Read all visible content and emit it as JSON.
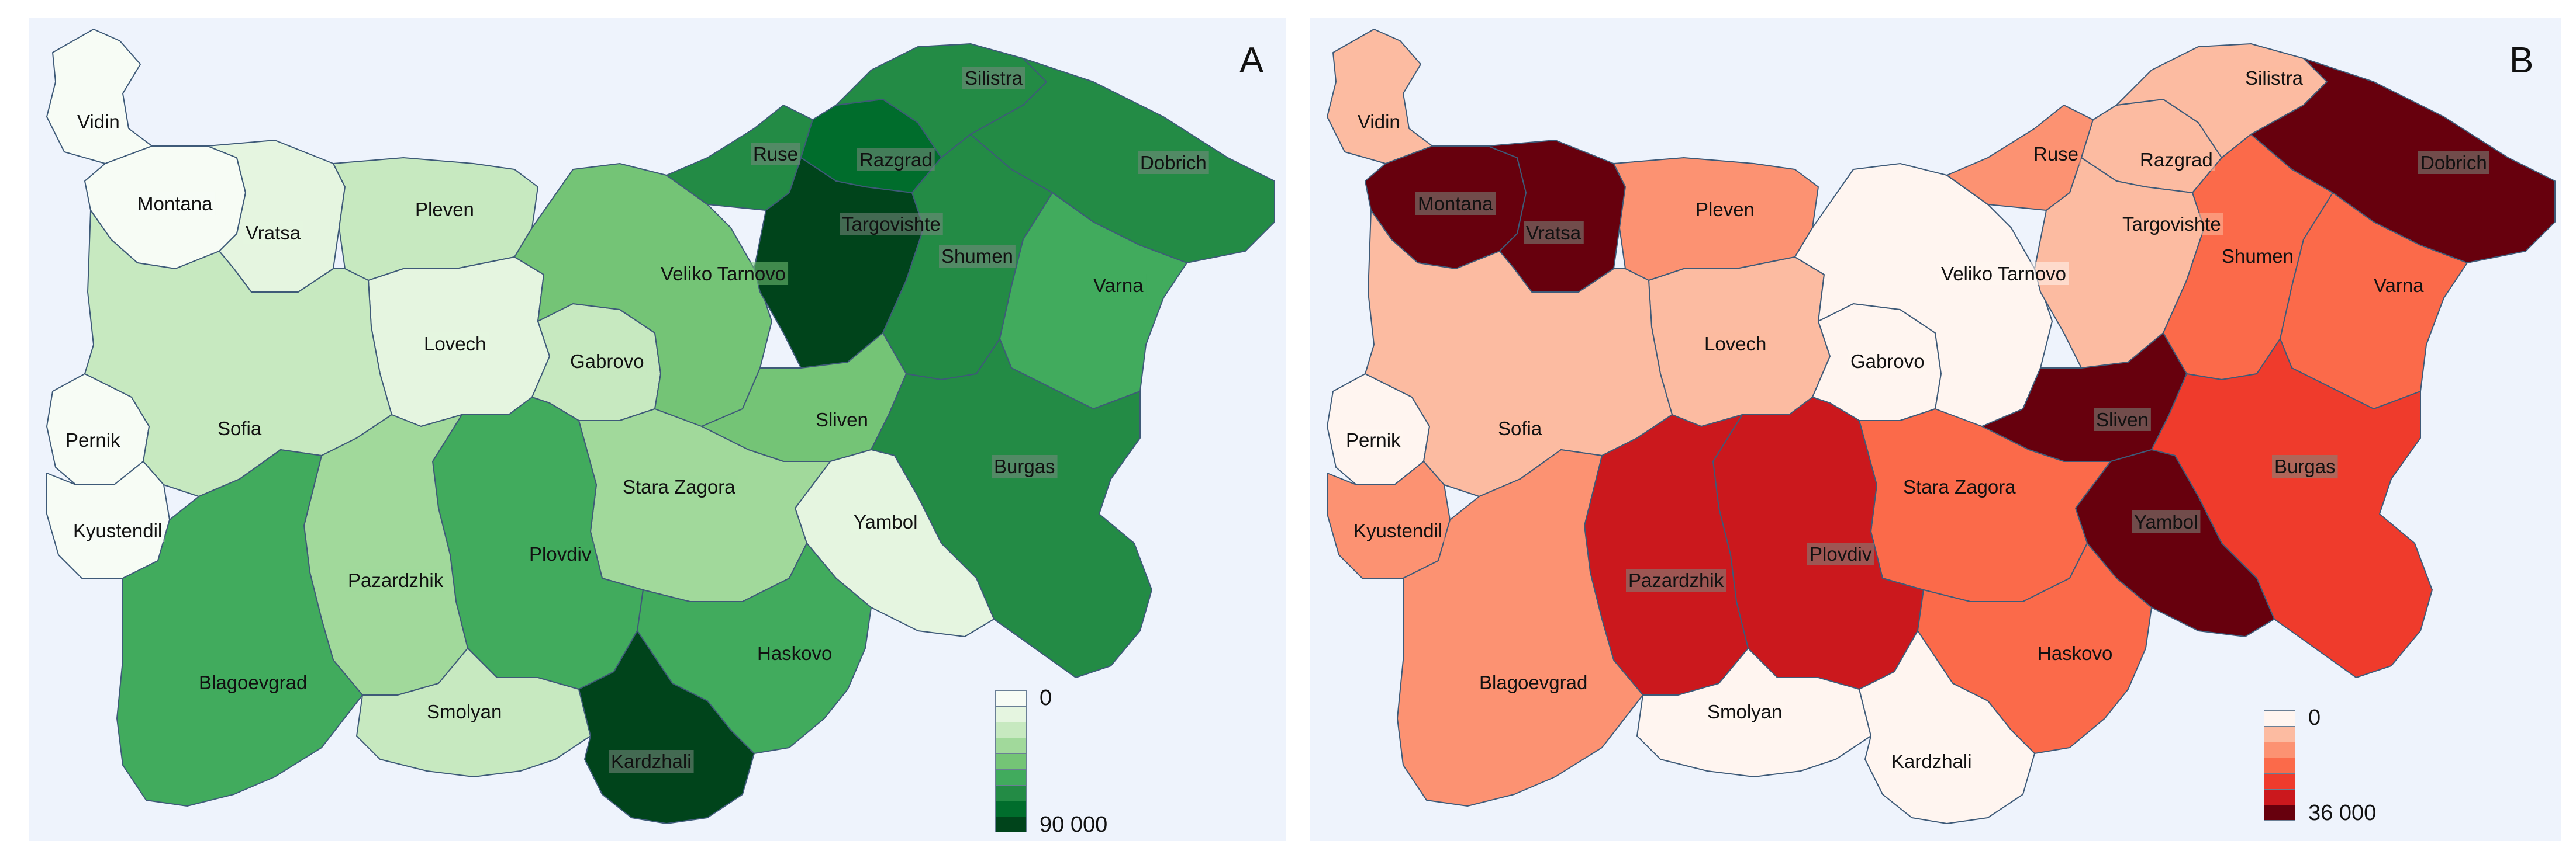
{
  "maps": [
    {
      "letter": "A",
      "legend": {
        "min_label": "0",
        "max_label": "90 000",
        "colors": [
          "#f7fcf5",
          "#e5f5e0",
          "#c7e9c0",
          "#a1d99b",
          "#74c476",
          "#41ab5d",
          "#238b45",
          "#006d2c",
          "#00441b"
        ]
      },
      "regions": [
        {
          "name": "Vidin",
          "value_class": 0
        },
        {
          "name": "Montana",
          "value_class": 0
        },
        {
          "name": "Vratsa",
          "value_class": 1
        },
        {
          "name": "Pleven",
          "value_class": 2
        },
        {
          "name": "Lovech",
          "value_class": 1
        },
        {
          "name": "Gabrovo",
          "value_class": 2
        },
        {
          "name": "Veliko Tarnovo",
          "value_class": 4
        },
        {
          "name": "Ruse",
          "value_class": 6
        },
        {
          "name": "Razgrad",
          "value_class": 7
        },
        {
          "name": "Silistra",
          "value_class": 6
        },
        {
          "name": "Dobrich",
          "value_class": 6
        },
        {
          "name": "Targovishte",
          "value_class": 8
        },
        {
          "name": "Shumen",
          "value_class": 6
        },
        {
          "name": "Varna",
          "value_class": 5
        },
        {
          "name": "Pernik",
          "value_class": 0
        },
        {
          "name": "Sofia",
          "value_class": 2
        },
        {
          "name": "Kyustendil",
          "value_class": 0
        },
        {
          "name": "Sliven",
          "value_class": 4
        },
        {
          "name": "Burgas",
          "value_class": 6
        },
        {
          "name": "Yambol",
          "value_class": 1
        },
        {
          "name": "Stara Zagora",
          "value_class": 3
        },
        {
          "name": "Plovdiv",
          "value_class": 5
        },
        {
          "name": "Pazardzhik",
          "value_class": 3
        },
        {
          "name": "Blagoevgrad",
          "value_class": 5
        },
        {
          "name": "Smolyan",
          "value_class": 2
        },
        {
          "name": "Haskovo",
          "value_class": 5
        },
        {
          "name": "Kardzhali",
          "value_class": 8
        }
      ]
    },
    {
      "letter": "B",
      "legend": {
        "min_label": "0",
        "max_label": "36 000",
        "colors": [
          "#fff5f0",
          "#fcbba1",
          "#fc9272",
          "#fb6a4a",
          "#ef3b2c",
          "#cb181d",
          "#67000d"
        ]
      },
      "regions": [
        {
          "name": "Vidin",
          "value_class": 1
        },
        {
          "name": "Montana",
          "value_class": 6
        },
        {
          "name": "Vratsa",
          "value_class": 6
        },
        {
          "name": "Pleven",
          "value_class": 2
        },
        {
          "name": "Lovech",
          "value_class": 1
        },
        {
          "name": "Gabrovo",
          "value_class": 0
        },
        {
          "name": "Veliko Tarnovo",
          "value_class": 0
        },
        {
          "name": "Ruse",
          "value_class": 2
        },
        {
          "name": "Razgrad",
          "value_class": 1
        },
        {
          "name": "Silistra",
          "value_class": 1
        },
        {
          "name": "Dobrich",
          "value_class": 6
        },
        {
          "name": "Targovishte",
          "value_class": 1
        },
        {
          "name": "Shumen",
          "value_class": 3
        },
        {
          "name": "Varna",
          "value_class": 3
        },
        {
          "name": "Pernik",
          "value_class": 0
        },
        {
          "name": "Sofia",
          "value_class": 1
        },
        {
          "name": "Kyustendil",
          "value_class": 2
        },
        {
          "name": "Sliven",
          "value_class": 6
        },
        {
          "name": "Burgas",
          "value_class": 4
        },
        {
          "name": "Yambol",
          "value_class": 6
        },
        {
          "name": "Stara Zagora",
          "value_class": 3
        },
        {
          "name": "Plovdiv",
          "value_class": 5
        },
        {
          "name": "Pazardzhik",
          "value_class": 5
        },
        {
          "name": "Blagoevgrad",
          "value_class": 2
        },
        {
          "name": "Smolyan",
          "value_class": 0
        },
        {
          "name": "Haskovo",
          "value_class": 3
        },
        {
          "name": "Kardzhali",
          "value_class": 0
        }
      ]
    }
  ]
}
